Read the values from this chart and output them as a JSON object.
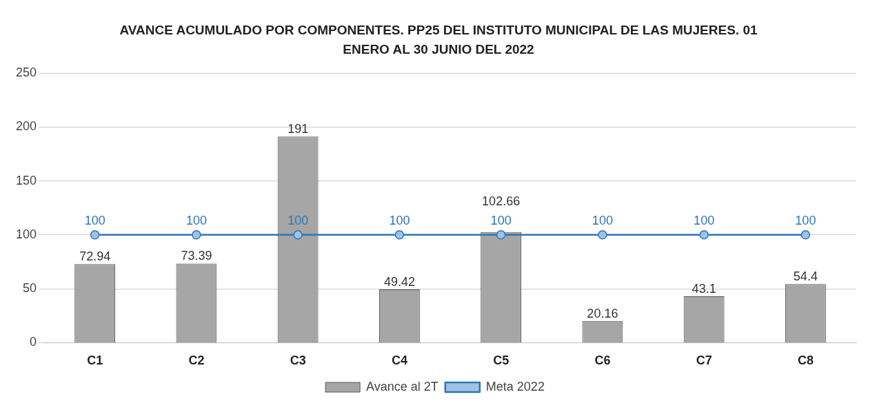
{
  "chart_data": {
    "type": "bar",
    "title": "AVANCE ACUMULADO POR COMPONENTES. PP25 DEL INSTITUTO MUNICIPAL DE LAS MUJERES. 01 ENERO AL 30 JUNIO DEL 2022",
    "categories": [
      "C1",
      "C2",
      "C3",
      "C4",
      "C5",
      "C6",
      "C7",
      "C8"
    ],
    "series": [
      {
        "name": "Avance al 2T",
        "color": "#a6a6a6",
        "values": [
          72.94,
          73.39,
          191,
          49.42,
          102.66,
          20.16,
          43.1,
          54.4
        ]
      },
      {
        "name": "Meta 2022",
        "type": "line",
        "color": "#2e75b6",
        "values": [
          100,
          100,
          100,
          100,
          100,
          100,
          100,
          100
        ]
      }
    ],
    "ylim": [
      0,
      250
    ],
    "yticks": [
      0,
      50,
      100,
      150,
      200,
      250
    ],
    "grid": "y",
    "legend": "bottom",
    "marker": "circle",
    "data_labels": true
  }
}
